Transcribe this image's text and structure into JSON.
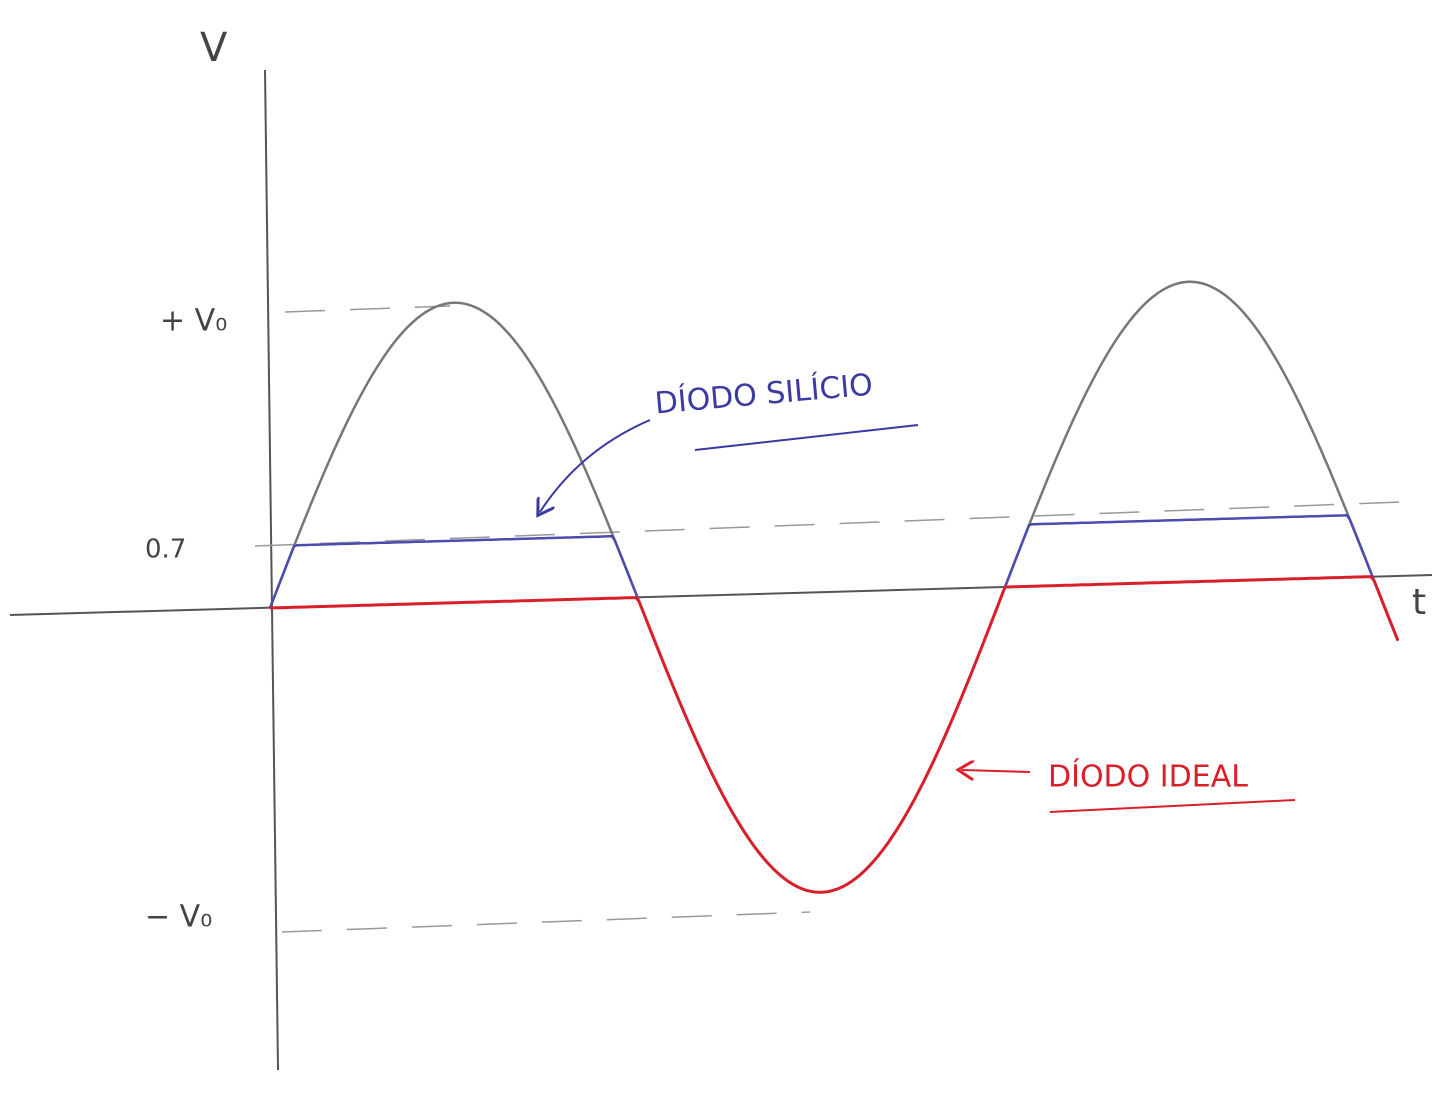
{
  "axes": {
    "y_label": "V",
    "x_label": "t"
  },
  "levels": {
    "positive_peak": "+ V₀",
    "threshold": "0.7",
    "negative_peak": "− V₀"
  },
  "annotations": {
    "silicon_diode": "DÍODO SILÍCIO",
    "ideal_diode": "DÍODO IDEAL"
  }
}
